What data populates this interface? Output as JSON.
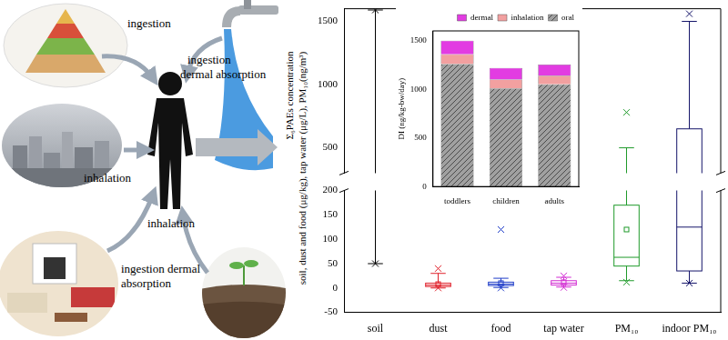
{
  "diagram": {
    "labels": [
      [
        "ingestion"
      ],
      [
        "ingestion",
        "dermal absorption"
      ],
      [
        "inhalation"
      ],
      [
        "inhalation"
      ],
      [
        "ingestion dermal",
        "absorption"
      ]
    ]
  },
  "chart_data": [
    {
      "type": "box",
      "categories": [
        "soil",
        "dust",
        "food",
        "tap water",
        "PM₁₀",
        "indoor PM₁₀"
      ],
      "colors": [
        "#000000",
        "#e0202a",
        "#1e3cc8",
        "#d22ad2",
        "#1f9a2a",
        "#15156a"
      ],
      "boxes": [
        {
          "whisker_low": 50,
          "q1": null,
          "median": null,
          "q3": null,
          "whisker_high": 1590,
          "mean": null,
          "min": 50,
          "max": 1590
        },
        {
          "whisker_low": 0,
          "q1": 3,
          "median": 6,
          "q3": 10,
          "whisker_high": 30,
          "mean": 8,
          "min": 0,
          "max": 40
        },
        {
          "whisker_low": 1,
          "q1": 5,
          "median": 8,
          "q3": 12,
          "whisker_high": 20,
          "mean": 10,
          "min": 0,
          "max": 120
        },
        {
          "whisker_low": 2,
          "q1": 6,
          "median": 10,
          "q3": 15,
          "whisker_high": 22,
          "mean": 12,
          "min": 1,
          "max": 25
        },
        {
          "whisker_low": 15,
          "q1": 45,
          "median": 63,
          "q3": 170,
          "whisker_high": 500,
          "mean": 120,
          "min": 12,
          "max": 780
        },
        {
          "whisker_low": 10,
          "q1": 35,
          "median": 125,
          "q3": 650,
          "whisker_high": 1500,
          "mean": null,
          "min": 10,
          "max": 1560
        }
      ],
      "y_label": [
        "Σ₆PAEs concentration",
        "soil, dust and food (μg/kg), tap water (μg/L), PM₁₀(ng/m³)"
      ],
      "ylim": [
        -50,
        200
      ],
      "yticks": [
        -50,
        0,
        50,
        100,
        150,
        200
      ],
      "y2lim": [
        300,
        1600
      ],
      "y2ticks": [
        500,
        1000,
        1500
      ],
      "grid": false
    },
    {
      "type": "bar",
      "stacked": true,
      "categories": [
        "toddlers",
        "children",
        "adults"
      ],
      "series": [
        {
          "name": "oral",
          "color": "#a0a0a0",
          "values": [
            1260,
            1010,
            1050
          ]
        },
        {
          "name": "inhalation",
          "color": "#f2a0a0",
          "values": [
            100,
            90,
            90
          ]
        },
        {
          "name": "dermal",
          "color": "#e23ce2",
          "values": [
            140,
            120,
            115
          ]
        }
      ],
      "y_label": "DI (ng/kg-bw/day)",
      "ylim": [
        0,
        1600
      ],
      "yticks": [
        0,
        500,
        1000,
        1500
      ],
      "legend": "top-right",
      "grid": false
    }
  ]
}
